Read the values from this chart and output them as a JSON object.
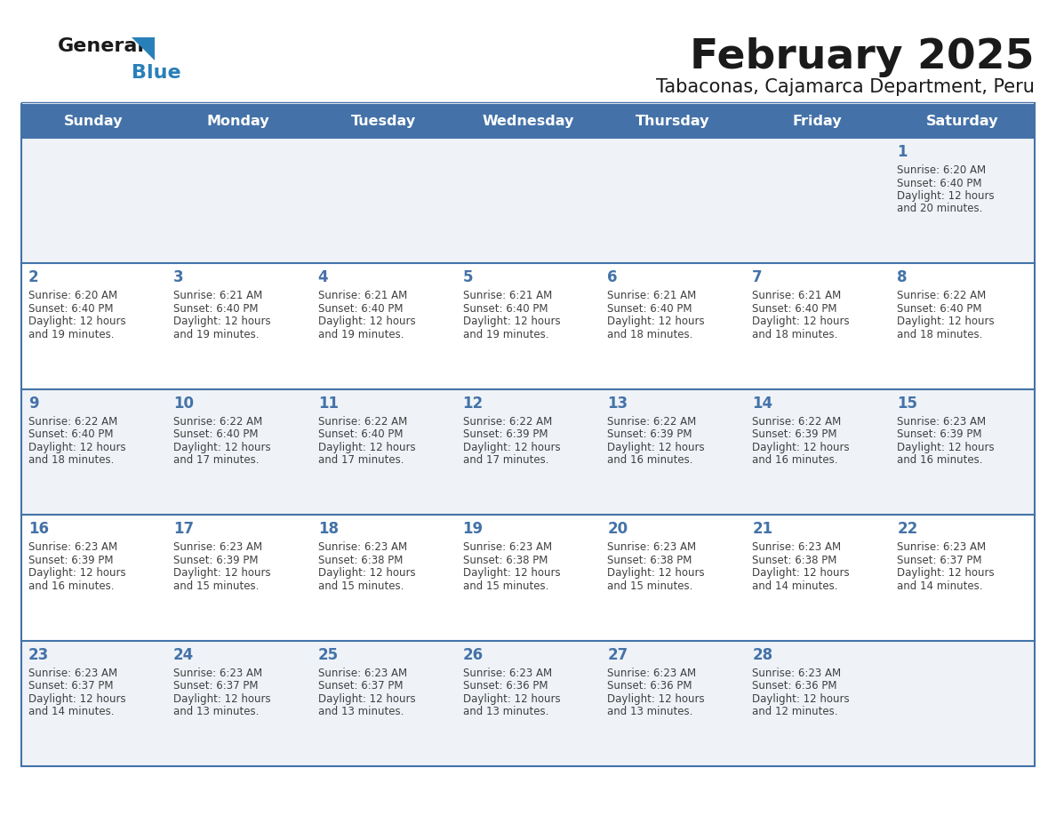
{
  "title": "February 2025",
  "subtitle": "Tabaconas, Cajamarca Department, Peru",
  "header_color": "#4472a8",
  "header_text_color": "#ffffff",
  "cell_bg_light": "#eff3f8",
  "cell_bg_white": "#ffffff",
  "border_color": "#4472a8",
  "days_of_week": [
    "Sunday",
    "Monday",
    "Tuesday",
    "Wednesday",
    "Thursday",
    "Friday",
    "Saturday"
  ],
  "title_color": "#1a1a1a",
  "subtitle_color": "#1a1a1a",
  "text_color": "#404040",
  "num_color": "#4472a8",
  "logo_color1": "#1a1a1a",
  "logo_color2": "#2980b9",
  "logo_triangle_color": "#2980b9",
  "calendar": [
    [
      null,
      null,
      null,
      null,
      null,
      null,
      {
        "day": "1",
        "sunrise": "6:20 AM",
        "sunset": "6:40 PM",
        "daylight1": "12 hours",
        "daylight2": "and 20 minutes."
      }
    ],
    [
      {
        "day": "2",
        "sunrise": "6:20 AM",
        "sunset": "6:40 PM",
        "daylight1": "12 hours",
        "daylight2": "and 19 minutes."
      },
      {
        "day": "3",
        "sunrise": "6:21 AM",
        "sunset": "6:40 PM",
        "daylight1": "12 hours",
        "daylight2": "and 19 minutes."
      },
      {
        "day": "4",
        "sunrise": "6:21 AM",
        "sunset": "6:40 PM",
        "daylight1": "12 hours",
        "daylight2": "and 19 minutes."
      },
      {
        "day": "5",
        "sunrise": "6:21 AM",
        "sunset": "6:40 PM",
        "daylight1": "12 hours",
        "daylight2": "and 19 minutes."
      },
      {
        "day": "6",
        "sunrise": "6:21 AM",
        "sunset": "6:40 PM",
        "daylight1": "12 hours",
        "daylight2": "and 18 minutes."
      },
      {
        "day": "7",
        "sunrise": "6:21 AM",
        "sunset": "6:40 PM",
        "daylight1": "12 hours",
        "daylight2": "and 18 minutes."
      },
      {
        "day": "8",
        "sunrise": "6:22 AM",
        "sunset": "6:40 PM",
        "daylight1": "12 hours",
        "daylight2": "and 18 minutes."
      }
    ],
    [
      {
        "day": "9",
        "sunrise": "6:22 AM",
        "sunset": "6:40 PM",
        "daylight1": "12 hours",
        "daylight2": "and 18 minutes."
      },
      {
        "day": "10",
        "sunrise": "6:22 AM",
        "sunset": "6:40 PM",
        "daylight1": "12 hours",
        "daylight2": "and 17 minutes."
      },
      {
        "day": "11",
        "sunrise": "6:22 AM",
        "sunset": "6:40 PM",
        "daylight1": "12 hours",
        "daylight2": "and 17 minutes."
      },
      {
        "day": "12",
        "sunrise": "6:22 AM",
        "sunset": "6:39 PM",
        "daylight1": "12 hours",
        "daylight2": "and 17 minutes."
      },
      {
        "day": "13",
        "sunrise": "6:22 AM",
        "sunset": "6:39 PM",
        "daylight1": "12 hours",
        "daylight2": "and 16 minutes."
      },
      {
        "day": "14",
        "sunrise": "6:22 AM",
        "sunset": "6:39 PM",
        "daylight1": "12 hours",
        "daylight2": "and 16 minutes."
      },
      {
        "day": "15",
        "sunrise": "6:23 AM",
        "sunset": "6:39 PM",
        "daylight1": "12 hours",
        "daylight2": "and 16 minutes."
      }
    ],
    [
      {
        "day": "16",
        "sunrise": "6:23 AM",
        "sunset": "6:39 PM",
        "daylight1": "12 hours",
        "daylight2": "and 16 minutes."
      },
      {
        "day": "17",
        "sunrise": "6:23 AM",
        "sunset": "6:39 PM",
        "daylight1": "12 hours",
        "daylight2": "and 15 minutes."
      },
      {
        "day": "18",
        "sunrise": "6:23 AM",
        "sunset": "6:38 PM",
        "daylight1": "12 hours",
        "daylight2": "and 15 minutes."
      },
      {
        "day": "19",
        "sunrise": "6:23 AM",
        "sunset": "6:38 PM",
        "daylight1": "12 hours",
        "daylight2": "and 15 minutes."
      },
      {
        "day": "20",
        "sunrise": "6:23 AM",
        "sunset": "6:38 PM",
        "daylight1": "12 hours",
        "daylight2": "and 15 minutes."
      },
      {
        "day": "21",
        "sunrise": "6:23 AM",
        "sunset": "6:38 PM",
        "daylight1": "12 hours",
        "daylight2": "and 14 minutes."
      },
      {
        "day": "22",
        "sunrise": "6:23 AM",
        "sunset": "6:37 PM",
        "daylight1": "12 hours",
        "daylight2": "and 14 minutes."
      }
    ],
    [
      {
        "day": "23",
        "sunrise": "6:23 AM",
        "sunset": "6:37 PM",
        "daylight1": "12 hours",
        "daylight2": "and 14 minutes."
      },
      {
        "day": "24",
        "sunrise": "6:23 AM",
        "sunset": "6:37 PM",
        "daylight1": "12 hours",
        "daylight2": "and 13 minutes."
      },
      {
        "day": "25",
        "sunrise": "6:23 AM",
        "sunset": "6:37 PM",
        "daylight1": "12 hours",
        "daylight2": "and 13 minutes."
      },
      {
        "day": "26",
        "sunrise": "6:23 AM",
        "sunset": "6:36 PM",
        "daylight1": "12 hours",
        "daylight2": "and 13 minutes."
      },
      {
        "day": "27",
        "sunrise": "6:23 AM",
        "sunset": "6:36 PM",
        "daylight1": "12 hours",
        "daylight2": "and 13 minutes."
      },
      {
        "day": "28",
        "sunrise": "6:23 AM",
        "sunset": "6:36 PM",
        "daylight1": "12 hours",
        "daylight2": "and 12 minutes."
      },
      null
    ]
  ]
}
